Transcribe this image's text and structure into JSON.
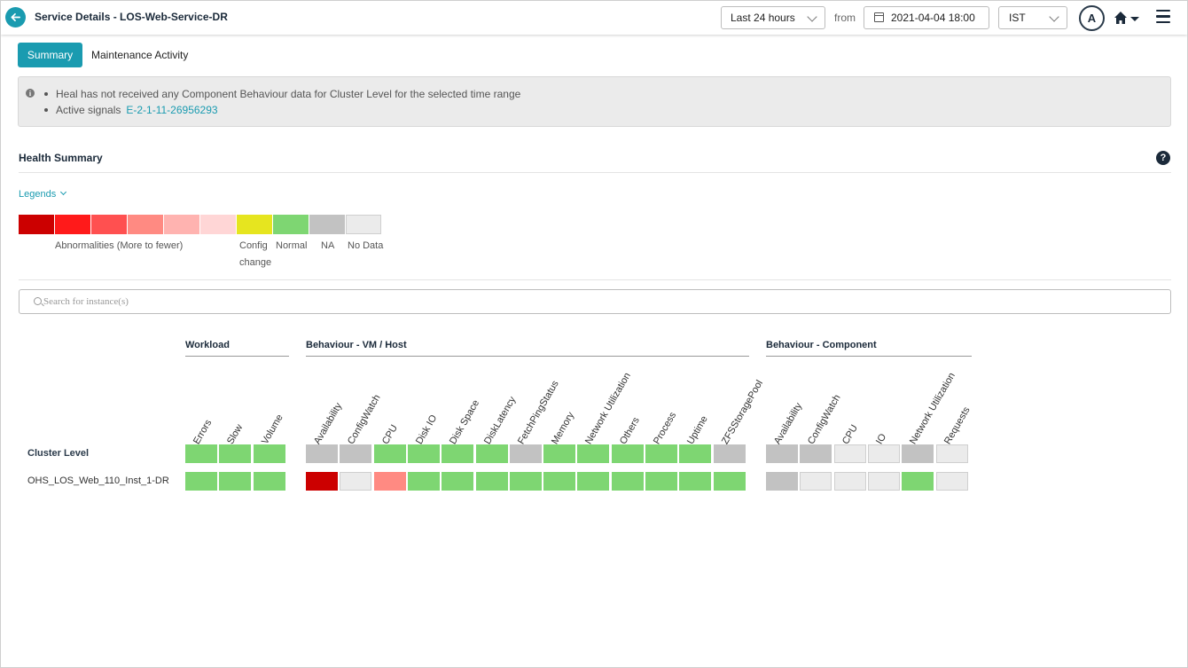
{
  "header": {
    "title": "Service Details - LOS-Web-Service-DR",
    "time_range": "Last 24 hours",
    "from_label": "from",
    "from_datetime": "2021-04-04 18:00",
    "timezone": "IST",
    "avatar_initial": "A"
  },
  "tabs": [
    {
      "label": "Summary",
      "active": true
    },
    {
      "label": "Maintenance Activity",
      "active": false
    }
  ],
  "notice": {
    "message": "Heal has not received any Component Behaviour data for Cluster Level for the selected time range",
    "signals_label": "Active signals",
    "signal_id": "E-2-1-11-26956293"
  },
  "health_summary": {
    "title": "Health Summary",
    "legends_toggle": "Legends",
    "legend": {
      "swatch_colors": [
        "#cc0000",
        "#ff1a1a",
        "#ff5050",
        "#ff8a82",
        "#ffb3b0",
        "#ffd6d6",
        "#e6e51f",
        "#7ed672",
        "#c2c2c2",
        "#ebebeb"
      ],
      "abnormal_label": "Abnormalities (More to fewer)",
      "config_label_1": "Config",
      "config_label_2": "change",
      "normal_label": "Normal",
      "na_label": "NA",
      "nodata_label": "No Data"
    }
  },
  "search": {
    "placeholder": "Search for instance(s)"
  },
  "grid": {
    "groups": [
      {
        "title": "Workload",
        "columns": [
          "Errors",
          "Slow",
          "Volume"
        ]
      },
      {
        "title": "Behaviour - VM / Host",
        "columns": [
          "Availability",
          "ConfigWatch",
          "CPU",
          "Disk IO",
          "Disk Space",
          "DiskLatency",
          "FetchPingStatus",
          "Memory",
          "Network Utilization",
          "Others",
          "Process",
          "Uptime",
          "ZFSStoragePool"
        ]
      },
      {
        "title": "Behaviour - Component",
        "columns": [
          "Availability",
          "ConfigWatch",
          "CPU",
          "IO",
          "Network Utilization",
          "Requests"
        ]
      }
    ],
    "rows": [
      {
        "name": "Cluster Level",
        "cells": [
          [
            "normal",
            "normal",
            "normal"
          ],
          [
            "na",
            "na",
            "normal",
            "normal",
            "normal",
            "normal",
            "na",
            "normal",
            "normal",
            "normal",
            "normal",
            "normal",
            "na"
          ],
          [
            "na",
            "na",
            "nodata",
            "nodata",
            "na",
            "nodata"
          ]
        ]
      },
      {
        "name": "OHS_LOS_Web_110_Inst_1-DR",
        "cells": [
          [
            "normal",
            "normal",
            "normal"
          ],
          [
            "critical",
            "nodata",
            "abnormal_mid",
            "normal",
            "normal",
            "normal",
            "normal",
            "normal",
            "normal",
            "normal",
            "normal",
            "normal",
            "normal"
          ],
          [
            "na",
            "nodata",
            "nodata",
            "nodata",
            "normal",
            "nodata"
          ]
        ]
      }
    ],
    "status_colors": {
      "critical": "#cc0000",
      "abnormal_mid": "#ff8a82",
      "normal": "#7ed672",
      "na": "#c2c2c2",
      "nodata": "#ebebeb"
    }
  }
}
